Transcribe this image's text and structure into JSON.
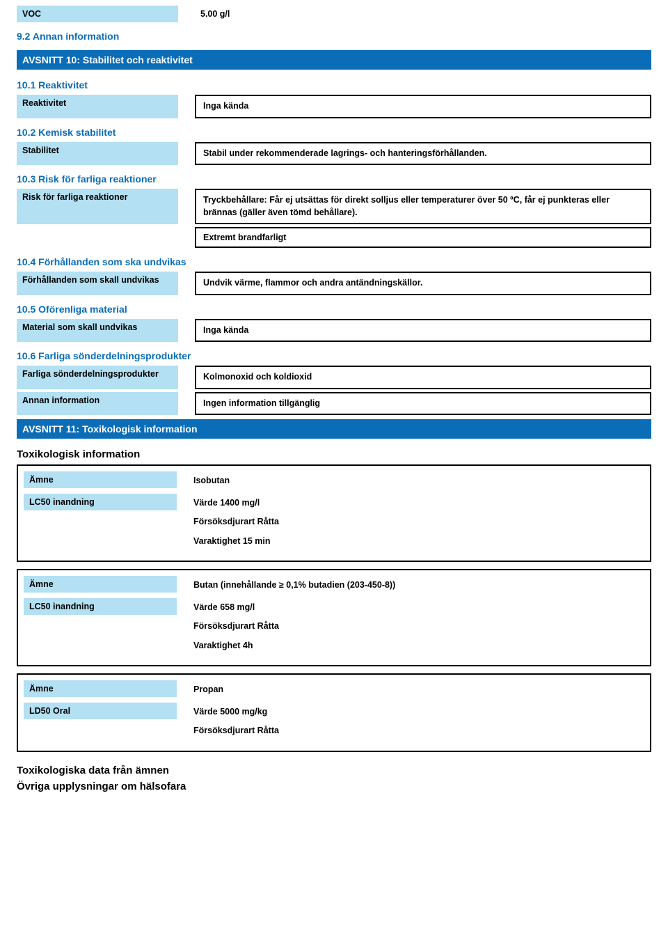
{
  "voc": {
    "label": "VOC",
    "value": "5.00 g/l"
  },
  "sec9_2": "9.2 Annan information",
  "section10_bar": "AVSNITT 10: Stabilitet och reaktivitet",
  "s10_1": "10.1 Reaktivitet",
  "reactivity": {
    "label": "Reaktivitet",
    "value": "Inga kända"
  },
  "s10_2": "10.2 Kemisk stabilitet",
  "stability": {
    "label": "Stabilitet",
    "value": "Stabil under rekommenderade lagrings- och hanteringsförhållanden."
  },
  "s10_3": "10.3 Risk för farliga reaktioner",
  "hazreact": {
    "label": "Risk för farliga reaktioner",
    "value": "Tryckbehållare: Får ej utsättas för direkt solljus eller temperaturer över 50 ºC, får ej punkteras eller brännas (gäller även tömd behållare)."
  },
  "extremt": "Extremt brandfarligt",
  "s10_4": "10.4 Förhållanden som ska undvikas",
  "avoid_cond": {
    "label": "Förhållanden som skall undvikas",
    "value": "Undvik värme, flammor och andra antändningskällor."
  },
  "s10_5": "10.5 Oförenliga material",
  "avoid_mat": {
    "label": "Material som skall undvikas",
    "value": "Inga kända"
  },
  "s10_6": "10.6 Farliga sönderdelningsprodukter",
  "decomp": {
    "label": "Farliga sönderdelningsprodukter",
    "value": "Kolmonoxid och koldioxid"
  },
  "other_info": {
    "label": "Annan information",
    "value": "Ingen information tillgänglig"
  },
  "section11_bar": "AVSNITT 11: Toxikologisk information",
  "tox_heading": "Toxikologisk information",
  "amne_label": "Ämne",
  "lc50_label": "LC50 inandning",
  "ld50_label": "LD50 Oral",
  "sub1": {
    "name": "Isobutan",
    "lc_value": "Värde 1400 mg/l",
    "species": "Försöksdjurart Råtta",
    "duration": "Varaktighet 15 min"
  },
  "sub2": {
    "name": "Butan (innehållande ≥ 0,1% butadien (203-450-8))",
    "lc_value": "Värde 658 mg/l",
    "species": "Försöksdjurart Råtta",
    "duration": "Varaktighet 4h"
  },
  "sub3": {
    "name": "Propan",
    "ld_value": "Värde 5000 mg/kg",
    "species": "Försöksdjurart Råtta"
  },
  "tox_data_heading": "Toxikologiska data från ämnen",
  "other_health_heading": "Övriga upplysningar om hälsofara"
}
